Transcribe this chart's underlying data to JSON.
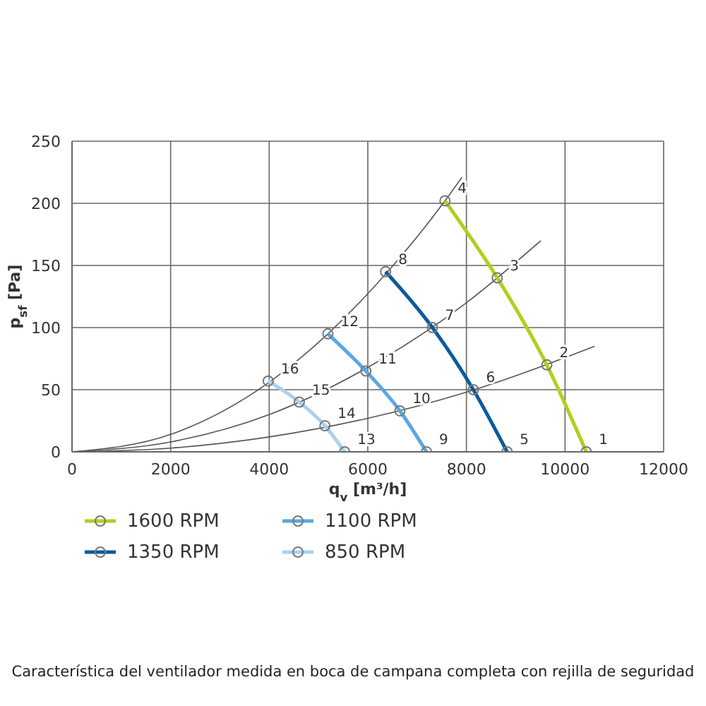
{
  "chart_data": {
    "type": "line",
    "xlabel": "q$_{v}$ [m³/h]",
    "ylabel": "p$_{sf}$ [Pa]",
    "xlim": [
      0,
      12000
    ],
    "xticks": [
      0,
      2000,
      4000,
      6000,
      8000,
      10000,
      12000
    ],
    "ylim": [
      0,
      250
    ],
    "yticks": [
      0,
      50,
      100,
      150,
      200,
      250
    ],
    "grid": true,
    "legend": "bottom left",
    "line_style": "solid",
    "series": [
      {
        "x": [
          0,
          2000,
          4000,
          5190,
          6360,
          7565,
          7910
        ],
        "values": [
          0,
          14,
          56,
          95,
          143,
          202,
          221
        ],
        "color": "#555555",
        "marker": "none"
      },
      {
        "x": [
          0,
          2000,
          4000,
          6000,
          8000,
          9510
        ],
        "values": [
          0,
          8,
          30,
          68,
          120,
          170
        ],
        "color": "#555555",
        "marker": "none"
      },
      {
        "x": [
          0,
          2000,
          4000,
          6000,
          8000,
          10600
        ],
        "values": [
          0,
          3,
          12,
          27,
          48,
          85
        ],
        "color": "#555555",
        "marker": "none"
      },
      {
        "name": "1600 RPM",
        "color": "#b7cc1e",
        "marker": "circle",
        "x": [
          7565,
          8625,
          9630,
          10430
        ],
        "values": [
          202,
          140,
          70,
          0
        ]
      },
      {
        "name": "1350 RPM",
        "color": "#0d5a9c",
        "marker": "circle",
        "x": [
          6360,
          7310,
          8140,
          8825
        ],
        "values": [
          145,
          100,
          50,
          0
        ]
      },
      {
        "name": "1100 RPM",
        "color": "#5aa8e0",
        "marker": "circle",
        "x": [
          5190,
          5960,
          6650,
          7190
        ],
        "values": [
          95,
          65,
          33,
          0
        ]
      },
      {
        "name": "850 RPM",
        "color": "#a8d0f0",
        "marker": "circle",
        "x": [
          3980,
          4610,
          5130,
          5530
        ],
        "values": [
          57,
          40,
          21,
          0
        ]
      }
    ],
    "annotations": [
      {
        "text": "1",
        "x": 10430,
        "y": 0
      },
      {
        "text": "2",
        "x": 9630,
        "y": 70
      },
      {
        "text": "3",
        "x": 8625,
        "y": 140
      },
      {
        "text": "4",
        "x": 7565,
        "y": 202
      },
      {
        "text": "5",
        "x": 8825,
        "y": 0
      },
      {
        "text": "6",
        "x": 8140,
        "y": 50
      },
      {
        "text": "7",
        "x": 7310,
        "y": 100
      },
      {
        "text": "8",
        "x": 6360,
        "y": 145
      },
      {
        "text": "9",
        "x": 7190,
        "y": 0
      },
      {
        "text": "10",
        "x": 6650,
        "y": 33
      },
      {
        "text": "11",
        "x": 5960,
        "y": 65
      },
      {
        "text": "12",
        "x": 5190,
        "y": 95
      },
      {
        "text": "13",
        "x": 5530,
        "y": 0
      },
      {
        "text": "14",
        "x": 5130,
        "y": 21
      },
      {
        "text": "15",
        "x": 4610,
        "y": 40
      },
      {
        "text": "16",
        "x": 3980,
        "y": 57
      },
      "Característica del ventilador medida en boca de campana completa con rejilla de seguridad"
    ]
  }
}
